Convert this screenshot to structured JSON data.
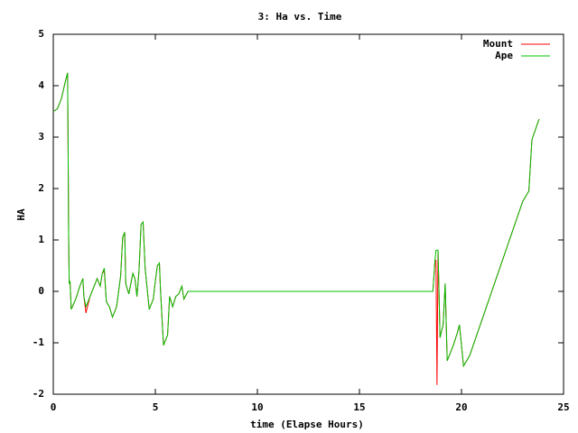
{
  "chart_data": {
    "type": "line",
    "title": "3: Ha vs. Time",
    "x_label": "time (Elapse Hours)",
    "y_label": "HA",
    "x": [
      0,
      0.2,
      0.4,
      0.6,
      0.7,
      0.72,
      0.75,
      0.78,
      0.82,
      0.88,
      1.1,
      1.3,
      1.45,
      1.5,
      1.6,
      1.8,
      2.0,
      2.15,
      2.3,
      2.4,
      2.5,
      2.6,
      2.75,
      2.9,
      3.1,
      3.3,
      3.4,
      3.5,
      3.55,
      3.7,
      3.9,
      4.0,
      4.1,
      4.2,
      4.3,
      4.4,
      4.5,
      4.6,
      4.7,
      4.9,
      5.0,
      5.1,
      5.2,
      5.25,
      5.4,
      5.6,
      5.7,
      5.85,
      6.0,
      6.15,
      6.3,
      6.4,
      6.6,
      18.6,
      18.7,
      18.75,
      18.8,
      18.85,
      18.95,
      19.1,
      19.2,
      19.3,
      19.6,
      19.8,
      19.9,
      20.1,
      20.4,
      23.0,
      23.3,
      23.45,
      23.8
    ],
    "series": [
      {
        "name": "Mount",
        "color": "#ff0000",
        "values": [
          3.5,
          3.55,
          3.75,
          4.1,
          4.25,
          3.2,
          1.2,
          0.15,
          0.2,
          -0.35,
          -0.15,
          0.1,
          0.25,
          -0.1,
          -0.42,
          -0.1,
          0.1,
          0.25,
          0.1,
          0.35,
          0.4,
          -0.2,
          -0.3,
          -0.5,
          -0.3,
          0.3,
          1.05,
          1.15,
          0.15,
          -0.05,
          0.35,
          0.25,
          -0.1,
          0.4,
          1.3,
          1.35,
          0.45,
          0.05,
          -0.35,
          -0.15,
          0.2,
          0.5,
          0.55,
          0.05,
          -1.05,
          -0.85,
          -0.1,
          -0.3,
          -0.1,
          -0.05,
          0.1,
          -0.15,
          0,
          0,
          0.6,
          0.6,
          -1.82,
          0.8,
          -0.9,
          -0.65,
          0.15,
          -1.35,
          -1.05,
          -0.8,
          -0.65,
          -1.45,
          -1.25,
          1.75,
          1.95,
          2.95,
          3.35
        ]
      },
      {
        "name": "Ape",
        "color": "#00c000",
        "values": [
          3.5,
          3.55,
          3.75,
          4.1,
          4.25,
          3.2,
          1.2,
          0.15,
          0.2,
          -0.35,
          -0.15,
          0.1,
          0.25,
          -0.1,
          -0.3,
          -0.1,
          0.1,
          0.25,
          0.1,
          0.35,
          0.45,
          -0.2,
          -0.3,
          -0.5,
          -0.3,
          0.3,
          1.05,
          1.15,
          0.15,
          -0.05,
          0.35,
          0.25,
          -0.1,
          0.4,
          1.3,
          1.35,
          0.45,
          0.05,
          -0.35,
          -0.15,
          0.2,
          0.5,
          0.55,
          0.05,
          -1.05,
          -0.85,
          -0.1,
          -0.3,
          -0.1,
          -0.05,
          0.1,
          -0.15,
          0,
          0,
          0.6,
          0.8,
          0.8,
          0.8,
          -0.9,
          -0.65,
          0.15,
          -1.35,
          -1.05,
          -0.8,
          -0.65,
          -1.45,
          -1.25,
          1.75,
          1.95,
          2.95,
          3.35
        ]
      }
    ],
    "xlim": [
      0,
      25
    ],
    "xticks": [
      0,
      5,
      10,
      15,
      20,
      25
    ],
    "ylim": [
      -2,
      5
    ],
    "yticks": [
      -2,
      -1,
      0,
      1,
      2,
      3,
      4,
      5
    ],
    "legend": "top-right"
  }
}
